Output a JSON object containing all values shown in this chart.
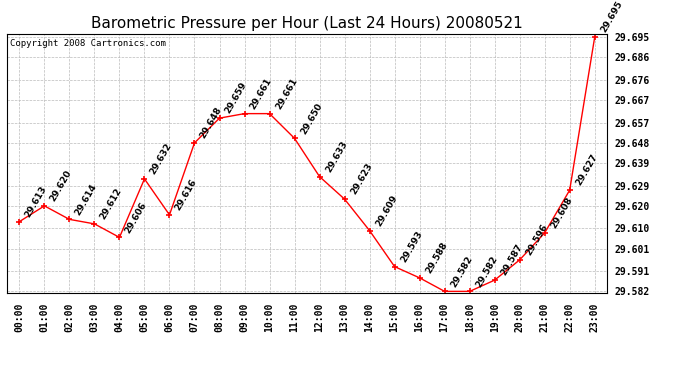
{
  "title": "Barometric Pressure per Hour (Last 24 Hours) 20080521",
  "copyright": "Copyright 2008 Cartronics.com",
  "hours": [
    "00:00",
    "01:00",
    "02:00",
    "03:00",
    "04:00",
    "05:00",
    "06:00",
    "07:00",
    "08:00",
    "09:00",
    "10:00",
    "11:00",
    "12:00",
    "13:00",
    "14:00",
    "15:00",
    "16:00",
    "17:00",
    "18:00",
    "19:00",
    "20:00",
    "21:00",
    "22:00",
    "23:00"
  ],
  "values": [
    29.613,
    29.62,
    29.614,
    29.612,
    29.606,
    29.632,
    29.616,
    29.648,
    29.659,
    29.661,
    29.661,
    29.65,
    29.633,
    29.623,
    29.609,
    29.593,
    29.588,
    29.582,
    29.582,
    29.587,
    29.596,
    29.608,
    29.627,
    29.695
  ],
  "ylim_min": 29.5815,
  "ylim_max": 29.6965,
  "yticks": [
    29.582,
    29.591,
    29.601,
    29.61,
    29.62,
    29.629,
    29.639,
    29.648,
    29.657,
    29.667,
    29.676,
    29.686,
    29.695
  ],
  "line_color": "red",
  "marker": "+",
  "marker_color": "red",
  "background_color": "white",
  "grid_color": "#bbbbbb",
  "title_fontsize": 11,
  "label_fontsize": 7,
  "annotation_fontsize": 6.5,
  "copyright_fontsize": 6.5
}
